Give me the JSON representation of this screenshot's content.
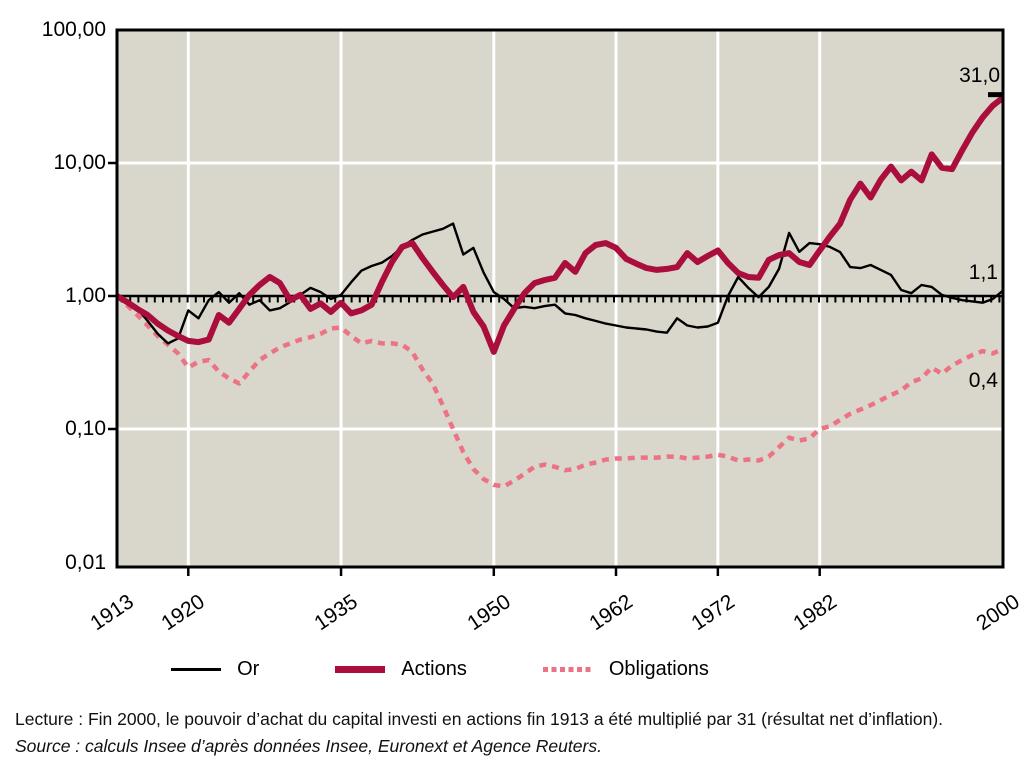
{
  "colors": {
    "plot_bg": "#d9d6cb",
    "grid": "#ffffff",
    "frame": "#000000",
    "or": "#000000",
    "actions": "#aa0e3c",
    "obligations": "#ec7384"
  },
  "chart_data": {
    "type": "line",
    "title": "",
    "x_scale": "linear",
    "y_scale": "log",
    "xlim": [
      1913,
      2000
    ],
    "ylim": [
      0.01,
      100
    ],
    "grid": true,
    "reference_line": {
      "value": 1.0,
      "style": "solid black with small ticks below"
    },
    "y_ticks": [
      {
        "value": 100,
        "label": "100,00",
        "gridline": false,
        "tick": false
      },
      {
        "value": 10,
        "label": "10,00",
        "gridline": true,
        "tick": true
      },
      {
        "value": 1,
        "label": "1,00",
        "gridline": false,
        "tick": true
      },
      {
        "value": 0.1,
        "label": "0,10",
        "gridline": true,
        "tick": true
      },
      {
        "value": 0.01,
        "label": "0,01",
        "gridline": false,
        "tick": false
      }
    ],
    "x_ticks": [
      {
        "year": 1913,
        "label": "1913",
        "gridline": false,
        "tick": false
      },
      {
        "year": 1920,
        "label": "1920",
        "gridline": true,
        "tick": true
      },
      {
        "year": 1935,
        "label": "1935",
        "gridline": true,
        "tick": true
      },
      {
        "year": 1950,
        "label": "1950",
        "gridline": true,
        "tick": true
      },
      {
        "year": 1962,
        "label": "1962",
        "gridline": true,
        "tick": true
      },
      {
        "year": 1972,
        "label": "1972",
        "gridline": true,
        "tick": true
      },
      {
        "year": 1982,
        "label": "1982",
        "gridline": true,
        "tick": true
      },
      {
        "year": 2000,
        "label": "2000",
        "gridline": false,
        "tick": false
      }
    ],
    "years": [
      1913,
      1914,
      1915,
      1916,
      1917,
      1918,
      1919,
      1920,
      1921,
      1922,
      1923,
      1924,
      1925,
      1926,
      1927,
      1928,
      1929,
      1930,
      1931,
      1932,
      1933,
      1934,
      1935,
      1936,
      1937,
      1938,
      1939,
      1940,
      1941,
      1942,
      1943,
      1944,
      1945,
      1946,
      1947,
      1948,
      1949,
      1950,
      1951,
      1952,
      1953,
      1954,
      1955,
      1956,
      1957,
      1958,
      1959,
      1960,
      1961,
      1962,
      1963,
      1964,
      1965,
      1966,
      1967,
      1968,
      1969,
      1970,
      1971,
      1972,
      1973,
      1974,
      1975,
      1976,
      1977,
      1978,
      1979,
      1980,
      1981,
      1982,
      1983,
      1984,
      1985,
      1986,
      1987,
      1988,
      1989,
      1990,
      1991,
      1992,
      1993,
      1994,
      1995,
      1996,
      1997,
      1998,
      1999,
      2000
    ],
    "series": [
      {
        "name": "Or",
        "z": 1,
        "color": "#000000",
        "width": 2.4,
        "dash": null,
        "end_label": "1,1",
        "end_value": 1.1,
        "values": [
          1.0,
          0.93,
          0.8,
          0.65,
          0.52,
          0.44,
          0.48,
          0.78,
          0.68,
          0.93,
          1.07,
          0.89,
          1.05,
          0.86,
          0.93,
          0.78,
          0.81,
          0.9,
          1.02,
          1.15,
          1.07,
          0.95,
          1.02,
          1.27,
          1.55,
          1.68,
          1.78,
          2.0,
          2.34,
          2.64,
          2.9,
          3.05,
          3.2,
          3.5,
          2.05,
          2.3,
          1.5,
          1.07,
          0.95,
          0.81,
          0.83,
          0.81,
          0.84,
          0.86,
          0.74,
          0.72,
          0.68,
          0.65,
          0.62,
          0.6,
          0.58,
          0.57,
          0.56,
          0.54,
          0.53,
          0.68,
          0.6,
          0.58,
          0.59,
          0.63,
          1.0,
          1.39,
          1.15,
          0.98,
          1.17,
          1.6,
          2.98,
          2.15,
          2.5,
          2.45,
          2.34,
          2.14,
          1.65,
          1.62,
          1.71,
          1.57,
          1.44,
          1.11,
          1.05,
          1.21,
          1.17,
          1.02,
          0.97,
          0.93,
          0.91,
          0.89,
          0.95,
          1.1
        ]
      },
      {
        "name": "Actions",
        "z": 2,
        "color": "#aa0e3c",
        "width": 6,
        "dash": null,
        "end_label": "31,0",
        "end_value": 31.0,
        "values": [
          1.0,
          0.9,
          0.8,
          0.72,
          0.62,
          0.55,
          0.5,
          0.46,
          0.45,
          0.47,
          0.72,
          0.63,
          0.8,
          1.02,
          1.21,
          1.39,
          1.25,
          0.93,
          1.02,
          0.8,
          0.88,
          0.76,
          0.89,
          0.74,
          0.78,
          0.86,
          1.27,
          1.8,
          2.34,
          2.5,
          1.93,
          1.52,
          1.21,
          0.98,
          1.17,
          0.76,
          0.59,
          0.38,
          0.6,
          0.8,
          1.05,
          1.25,
          1.32,
          1.37,
          1.77,
          1.52,
          2.1,
          2.42,
          2.5,
          2.3,
          1.9,
          1.75,
          1.62,
          1.57,
          1.6,
          1.65,
          2.1,
          1.8,
          2.0,
          2.2,
          1.77,
          1.49,
          1.39,
          1.37,
          1.87,
          2.03,
          2.1,
          1.8,
          1.71,
          2.2,
          2.8,
          3.5,
          5.3,
          7.0,
          5.5,
          7.5,
          9.4,
          7.4,
          8.6,
          7.4,
          11.6,
          9.2,
          9.0,
          12.5,
          17.0,
          22.0,
          27.0,
          31.0
        ]
      },
      {
        "name": "Obligations",
        "z": 0,
        "color": "#ec7384",
        "width": 4.5,
        "dash": "7 6",
        "end_label": "0,4",
        "end_value": 0.4,
        "values": [
          1.0,
          0.85,
          0.72,
          0.6,
          0.5,
          0.43,
          0.37,
          0.29,
          0.32,
          0.33,
          0.27,
          0.24,
          0.22,
          0.27,
          0.33,
          0.37,
          0.41,
          0.44,
          0.47,
          0.49,
          0.52,
          0.57,
          0.58,
          0.5,
          0.44,
          0.46,
          0.44,
          0.44,
          0.43,
          0.38,
          0.28,
          0.22,
          0.15,
          0.1,
          0.067,
          0.05,
          0.042,
          0.038,
          0.037,
          0.041,
          0.046,
          0.052,
          0.054,
          0.052,
          0.049,
          0.05,
          0.054,
          0.056,
          0.059,
          0.06,
          0.06,
          0.061,
          0.061,
          0.061,
          0.062,
          0.062,
          0.06,
          0.061,
          0.062,
          0.064,
          0.062,
          0.058,
          0.059,
          0.058,
          0.062,
          0.073,
          0.086,
          0.082,
          0.085,
          0.1,
          0.105,
          0.117,
          0.13,
          0.14,
          0.151,
          0.165,
          0.18,
          0.195,
          0.225,
          0.24,
          0.29,
          0.26,
          0.3,
          0.33,
          0.36,
          0.385,
          0.37,
          0.4
        ]
      }
    ],
    "legend_position": "bottom"
  },
  "footer": {
    "lecture": "Lecture : Fin 2000, le pouvoir d’achat du capital investi en actions fin 1913 a été multiplié par 31 (résultat net d’inflation).",
    "source": "Source : calculs Insee d’après données Insee, Euronext et Agence Reuters."
  }
}
